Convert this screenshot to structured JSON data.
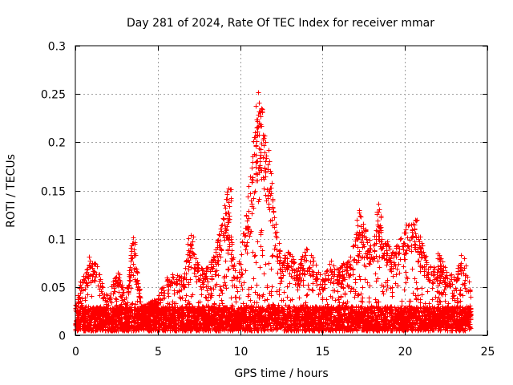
{
  "chart_data": {
    "type": "scatter",
    "title": "Day 281 of 2024, Rate Of TEC Index for receiver mmar",
    "xlabel": "GPS time / hours",
    "ylabel": "ROTI / TECUs",
    "xlim": [
      0,
      25
    ],
    "ylim": [
      0,
      0.3
    ],
    "xticks": [
      0,
      5,
      10,
      15,
      20,
      25
    ],
    "yticks": [
      0,
      0.05,
      0.1,
      0.15,
      0.2,
      0.25,
      0.3
    ],
    "xtick_labels": [
      "0",
      "5",
      "10",
      "15",
      "20",
      "25"
    ],
    "ytick_labels": [
      "0",
      "0.05",
      "0.1",
      "0.15",
      "0.2",
      "0.25",
      "0.3"
    ],
    "grid": true,
    "marker": "+",
    "color": "#ff0000",
    "point_count_estimate": 20000,
    "data_x_range": [
      0,
      24
    ],
    "baseline_band": [
      0.005,
      0.03
    ],
    "envelope": {
      "description": "approximate upper envelope of the ROTI point cloud (hour, ROTI)",
      "x": [
        0,
        0.3,
        0.6,
        0.8,
        1.0,
        1.2,
        1.5,
        2.0,
        2.5,
        3.0,
        3.5,
        4.0,
        4.5,
        5.0,
        5.5,
        6.0,
        6.5,
        7.0,
        7.3,
        7.6,
        8.0,
        8.5,
        9.0,
        9.2,
        9.5,
        9.8,
        10.0,
        10.3,
        10.6,
        10.9,
        11.1,
        11.3,
        11.6,
        11.9,
        12.2,
        12.5,
        13.0,
        13.5,
        14.0,
        14.5,
        15.0,
        15.5,
        16.0,
        16.5,
        17.0,
        17.5,
        18.0,
        18.4,
        18.8,
        19.3,
        19.8,
        20.2,
        20.6,
        21.0,
        21.3,
        21.7,
        22.0,
        22.5,
        23.0,
        23.5,
        24.0
      ],
      "y": [
        0.03,
        0.06,
        0.07,
        0.082,
        0.075,
        0.08,
        0.06,
        0.04,
        0.075,
        0.04,
        0.1,
        0.03,
        0.035,
        0.04,
        0.06,
        0.065,
        0.06,
        0.1,
        0.08,
        0.07,
        0.07,
        0.09,
        0.13,
        0.152,
        0.09,
        0.06,
        0.09,
        0.12,
        0.17,
        0.21,
        0.25,
        0.24,
        0.19,
        0.16,
        0.11,
        0.08,
        0.09,
        0.07,
        0.095,
        0.08,
        0.06,
        0.08,
        0.07,
        0.08,
        0.105,
        0.12,
        0.09,
        0.135,
        0.1,
        0.09,
        0.105,
        0.12,
        0.115,
        0.1,
        0.08,
        0.07,
        0.085,
        0.07,
        0.06,
        0.09,
        0.05
      ]
    },
    "notable_peaks": [
      {
        "x": 3.5,
        "y": 0.101
      },
      {
        "x": 7.0,
        "y": 0.104
      },
      {
        "x": 9.3,
        "y": 0.152
      },
      {
        "x": 10.9,
        "y": 0.21
      },
      {
        "x": 11.1,
        "y": 0.252
      },
      {
        "x": 11.2,
        "y": 0.232
      },
      {
        "x": 11.7,
        "y": 0.192
      },
      {
        "x": 17.2,
        "y": 0.13
      },
      {
        "x": 18.4,
        "y": 0.136
      },
      {
        "x": 20.6,
        "y": 0.12
      }
    ]
  }
}
